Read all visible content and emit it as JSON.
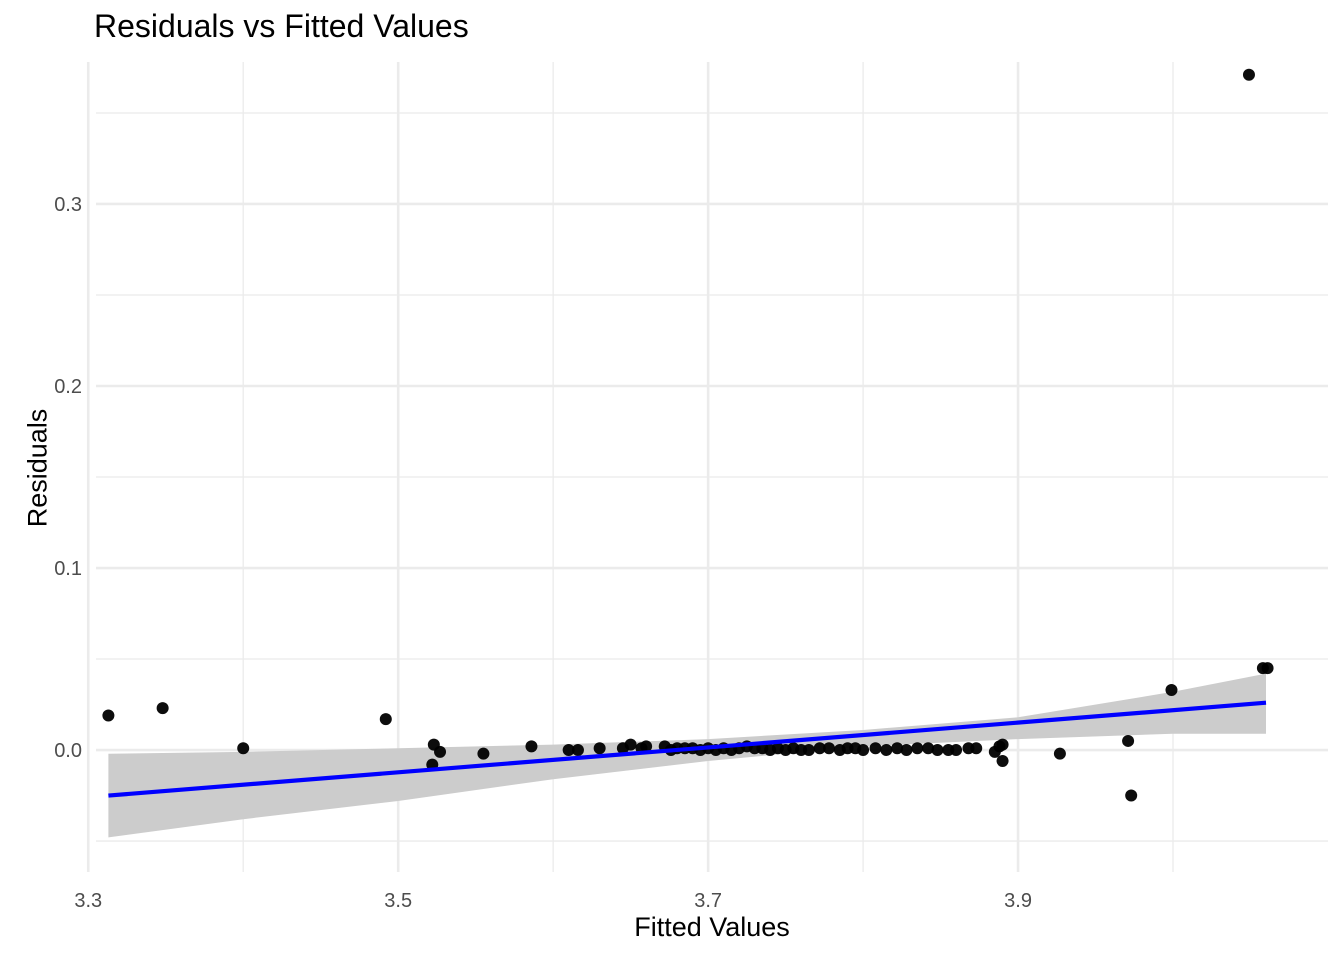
{
  "chart_data": {
    "type": "scatter",
    "title": "Residuals vs Fitted Values",
    "xlabel": "Fitted Values",
    "ylabel": "Residuals",
    "xlim": [
      3.305,
      4.1
    ],
    "ylim": [
      -0.067,
      0.378
    ],
    "x_ticks": [
      {
        "value": 3.3,
        "label": "3.3"
      },
      {
        "value": 3.5,
        "label": "3.5"
      },
      {
        "value": 3.7,
        "label": "3.7"
      },
      {
        "value": 3.9,
        "label": "3.9"
      }
    ],
    "x_minor_grid": [
      3.3,
      3.4,
      3.5,
      3.6,
      3.7,
      3.8,
      3.9,
      4.0
    ],
    "y_ticks": [
      {
        "value": 0.0,
        "label": "0.0"
      },
      {
        "value": 0.1,
        "label": "0.1"
      },
      {
        "value": 0.2,
        "label": "0.2"
      },
      {
        "value": 0.3,
        "label": "0.3"
      }
    ],
    "y_minor_grid": [
      -0.05,
      0.05,
      0.15,
      0.25,
      0.35
    ],
    "grid": true,
    "legend": "none",
    "colors": {
      "points": "#000000",
      "fit_line": "#0000ff",
      "confidence_band": "#cccccc",
      "grid": "#ebebeb"
    },
    "points": [
      {
        "x": 3.313,
        "y": 0.019
      },
      {
        "x": 3.348,
        "y": 0.023
      },
      {
        "x": 3.4,
        "y": 0.001
      },
      {
        "x": 3.492,
        "y": 0.017
      },
      {
        "x": 3.523,
        "y": 0.003
      },
      {
        "x": 3.527,
        "y": -0.001
      },
      {
        "x": 3.522,
        "y": -0.008
      },
      {
        "x": 3.555,
        "y": -0.002
      },
      {
        "x": 3.586,
        "y": 0.002
      },
      {
        "x": 3.61,
        "y": 0.0
      },
      {
        "x": 3.616,
        "y": 0.0
      },
      {
        "x": 3.63,
        "y": 0.001
      },
      {
        "x": 3.645,
        "y": 0.001
      },
      {
        "x": 3.65,
        "y": 0.003
      },
      {
        "x": 3.657,
        "y": 0.001
      },
      {
        "x": 3.66,
        "y": 0.002
      },
      {
        "x": 3.672,
        "y": 0.002
      },
      {
        "x": 3.676,
        "y": 0.0
      },
      {
        "x": 3.68,
        "y": 0.001
      },
      {
        "x": 3.685,
        "y": 0.001
      },
      {
        "x": 3.69,
        "y": 0.001
      },
      {
        "x": 3.695,
        "y": 0.0
      },
      {
        "x": 3.7,
        "y": 0.001
      },
      {
        "x": 3.705,
        "y": 0.0
      },
      {
        "x": 3.71,
        "y": 0.001
      },
      {
        "x": 3.715,
        "y": 0.0
      },
      {
        "x": 3.72,
        "y": 0.001
      },
      {
        "x": 3.725,
        "y": 0.002
      },
      {
        "x": 3.73,
        "y": 0.001
      },
      {
        "x": 3.735,
        "y": 0.001
      },
      {
        "x": 3.74,
        "y": 0.0
      },
      {
        "x": 3.745,
        "y": 0.001
      },
      {
        "x": 3.75,
        "y": 0.0
      },
      {
        "x": 3.755,
        "y": 0.001
      },
      {
        "x": 3.76,
        "y": 0.0
      },
      {
        "x": 3.765,
        "y": 0.0
      },
      {
        "x": 3.772,
        "y": 0.001
      },
      {
        "x": 3.778,
        "y": 0.001
      },
      {
        "x": 3.785,
        "y": 0.0
      },
      {
        "x": 3.79,
        "y": 0.001
      },
      {
        "x": 3.795,
        "y": 0.001
      },
      {
        "x": 3.8,
        "y": 0.0
      },
      {
        "x": 3.808,
        "y": 0.001
      },
      {
        "x": 3.815,
        "y": 0.0
      },
      {
        "x": 3.822,
        "y": 0.001
      },
      {
        "x": 3.828,
        "y": 0.0
      },
      {
        "x": 3.835,
        "y": 0.001
      },
      {
        "x": 3.842,
        "y": 0.001
      },
      {
        "x": 3.848,
        "y": 0.0
      },
      {
        "x": 3.855,
        "y": 0.0
      },
      {
        "x": 3.86,
        "y": 0.0
      },
      {
        "x": 3.868,
        "y": 0.001
      },
      {
        "x": 3.873,
        "y": 0.001
      },
      {
        "x": 3.885,
        "y": -0.001
      },
      {
        "x": 3.888,
        "y": 0.002
      },
      {
        "x": 3.89,
        "y": 0.003
      },
      {
        "x": 3.89,
        "y": -0.006
      },
      {
        "x": 3.927,
        "y": -0.002
      },
      {
        "x": 3.971,
        "y": 0.005
      },
      {
        "x": 3.973,
        "y": -0.025
      },
      {
        "x": 3.999,
        "y": 0.033
      },
      {
        "x": 4.049,
        "y": 0.371
      },
      {
        "x": 4.058,
        "y": 0.045
      },
      {
        "x": 4.061,
        "y": 0.045
      }
    ],
    "fit_line": {
      "x": [
        3.313,
        4.06
      ],
      "y": [
        -0.025,
        0.026
      ]
    },
    "confidence_band": {
      "x": [
        3.313,
        3.4,
        3.5,
        3.6,
        3.7,
        3.8,
        3.9,
        4.0,
        4.06
      ],
      "upper": [
        -0.002,
        -0.001,
        0.001,
        0.003,
        0.006,
        0.011,
        0.018,
        0.032,
        0.042
      ],
      "lower": [
        -0.048,
        -0.038,
        -0.028,
        -0.016,
        -0.006,
        0.002,
        0.006,
        0.009,
        0.009
      ]
    }
  }
}
